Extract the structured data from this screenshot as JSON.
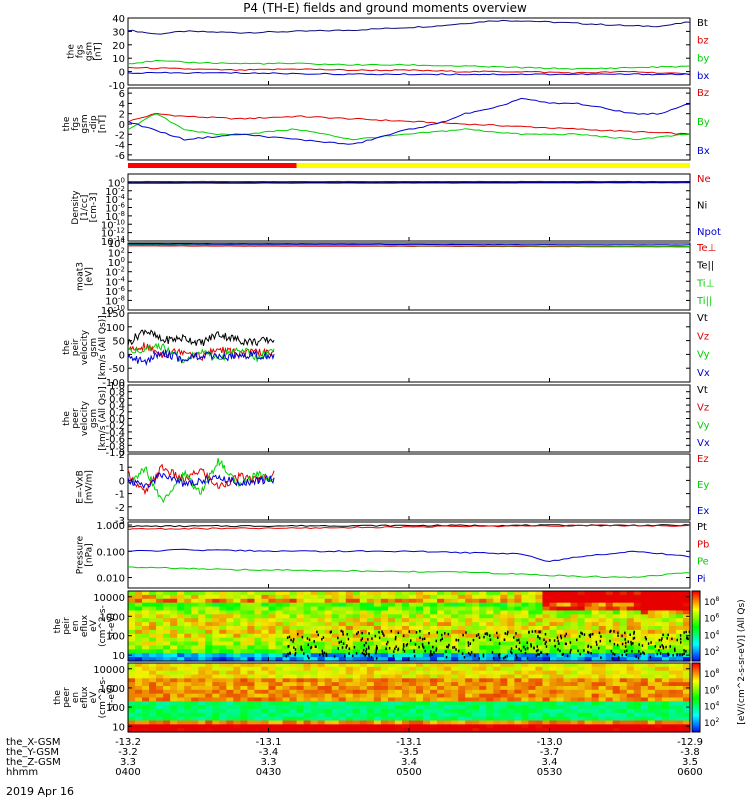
{
  "title": "P4 (TH-E) fields and ground moments overview",
  "date_label": "2019 Apr 16",
  "colors": {
    "black": "#000000",
    "red": "#e00000",
    "green": "#00d000",
    "blue": "#0000d0",
    "yellow": "#ffff00",
    "bar_red": "#ff0000"
  },
  "chart_data": [
    {
      "type": "line",
      "ylabel": [
        "the",
        "fgs",
        "gsm",
        "[nT]"
      ],
      "ylim": [
        -10,
        40
      ],
      "yticks": [
        "40",
        "30",
        "20",
        "10",
        "0",
        "-10"
      ],
      "ytick_vals": [
        40,
        30,
        20,
        10,
        0,
        -10
      ],
      "legend": [
        {
          "name": "Bt",
          "color": "#000000"
        },
        {
          "name": "bz",
          "color": "#e00000"
        },
        {
          "name": "by",
          "color": "#00d000"
        },
        {
          "name": "bx",
          "color": "#0000d0"
        }
      ],
      "series": [
        {
          "name": "Bt",
          "color": "#0a0a7a",
          "x": [
            0,
            0.05,
            0.1,
            0.2,
            0.3,
            0.4,
            0.5,
            0.55,
            0.6,
            0.65,
            0.7,
            0.75,
            0.8,
            0.85,
            0.9,
            0.95,
            1
          ],
          "y": [
            31,
            28,
            30,
            29,
            30,
            31,
            33,
            34,
            36,
            38,
            38,
            37,
            36,
            35,
            34,
            34,
            37
          ]
        },
        {
          "name": "bz",
          "color": "#e00000",
          "x": [
            0,
            0.1,
            0.2,
            0.3,
            0.4,
            0.5,
            0.6,
            0.7,
            0.8,
            0.9,
            1
          ],
          "y": [
            3,
            2,
            1,
            2,
            1,
            1,
            0,
            0,
            -1,
            0,
            -2
          ]
        },
        {
          "name": "by",
          "color": "#00d000",
          "x": [
            0,
            0.05,
            0.1,
            0.2,
            0.3,
            0.4,
            0.5,
            0.6,
            0.7,
            0.8,
            0.9,
            1
          ],
          "y": [
            6,
            8,
            7,
            6,
            6,
            5,
            5,
            4,
            3,
            2,
            3,
            4
          ]
        },
        {
          "name": "bx",
          "color": "#0000d0",
          "x": [
            0,
            0.2,
            0.4,
            0.6,
            0.8,
            1
          ],
          "y": [
            -1,
            -1,
            -2,
            -2,
            -2,
            -2
          ]
        }
      ]
    },
    {
      "type": "line",
      "ylabel": [
        "the",
        "fgs",
        "gsm",
        "-dip",
        "[nT]"
      ],
      "ylim": [
        -7,
        7
      ],
      "yticks": [
        "6",
        "4",
        "2",
        "0",
        "-2",
        "-4",
        "-6"
      ],
      "ytick_vals": [
        6,
        4,
        2,
        0,
        -2,
        -4,
        -6
      ],
      "legend": [
        {
          "name": "Bz",
          "color": "#e00000"
        },
        {
          "name": "By",
          "color": "#00d000"
        },
        {
          "name": "Bx",
          "color": "#0000d0"
        }
      ],
      "series": [
        {
          "name": "Bz",
          "color": "#e00000",
          "x": [
            0,
            0.05,
            0.1,
            0.2,
            0.3,
            0.4,
            0.5,
            0.6,
            0.7,
            0.8,
            0.9,
            1
          ],
          "y": [
            0.5,
            2,
            1.5,
            1,
            1.5,
            1,
            0.5,
            0,
            -0.5,
            -1,
            -1.5,
            -2
          ]
        },
        {
          "name": "By",
          "color": "#00d000",
          "x": [
            0,
            0.05,
            0.1,
            0.15,
            0.2,
            0.3,
            0.4,
            0.5,
            0.6,
            0.7,
            0.8,
            0.9,
            1
          ],
          "y": [
            -1,
            2,
            -1,
            -2,
            -2,
            -1,
            -3,
            -2,
            -1,
            -2,
            -2,
            -3,
            -2
          ]
        },
        {
          "name": "Bx",
          "color": "#0000d0",
          "x": [
            0,
            0.1,
            0.2,
            0.3,
            0.4,
            0.5,
            0.55,
            0.6,
            0.65,
            0.7,
            0.75,
            0.8,
            0.85,
            0.9,
            0.95,
            1
          ],
          "y": [
            0.5,
            -3,
            -2,
            -3,
            -4,
            -1,
            0,
            2,
            3,
            5,
            4,
            4,
            3,
            2,
            2,
            4
          ]
        }
      ]
    },
    {
      "type": "line",
      "ylabel": [
        "Density",
        "[1/cc]",
        "[cm-3]"
      ],
      "yscale": "log",
      "ylim": [
        1e-14,
        100.0
      ],
      "yticks": [
        "10^0",
        "10^-2",
        "10^-4",
        "10^-6",
        "10^-8",
        "10^-10",
        "10^-12",
        "10^-14"
      ],
      "ytick_vals": [
        0,
        -2,
        -4,
        -6,
        -8,
        -10,
        -12,
        -14
      ],
      "legend": [
        {
          "name": "Ne",
          "color": "#e00000"
        },
        {
          "name": "Ni",
          "color": "#000000"
        },
        {
          "name": "Npot",
          "color": "#0000d0"
        }
      ],
      "series": [
        {
          "name": "Ne",
          "color": "#e00000",
          "x": [
            0,
            1
          ],
          "y": [
            0.2,
            0.2
          ]
        },
        {
          "name": "Ni",
          "color": "#000000",
          "x": [
            0,
            1
          ],
          "y": [
            0.0,
            0.1
          ]
        },
        {
          "name": "Npot",
          "color": "#0000d0",
          "x": [
            0,
            1
          ],
          "y": [
            -0.2,
            -0.1
          ]
        }
      ]
    },
    {
      "type": "line",
      "ylabel": [
        "moat3",
        "[eV]"
      ],
      "yscale": "log",
      "ylim": [
        1e-10,
        10000.0
      ],
      "yticks": [
        "10^4",
        "10^2",
        "10^0",
        "10^-2",
        "10^-4",
        "10^-6",
        "10^-8",
        "10^-10"
      ],
      "ytick_vals": [
        4,
        2,
        0,
        -2,
        -4,
        -6,
        -8,
        -10
      ],
      "legend": [
        {
          "name": "Te⊥",
          "color": "#e00000"
        },
        {
          "name": "Te||",
          "color": "#000000"
        },
        {
          "name": "Ti⊥",
          "color": "#00d000"
        },
        {
          "name": "Ti||",
          "color": "#00d000"
        }
      ],
      "series": [
        {
          "name": "Te⊥",
          "color": "#e00000",
          "x": [
            0,
            1
          ],
          "y": [
            3.4,
            3.2
          ]
        },
        {
          "name": "Ti⊥",
          "color": "#00d000",
          "x": [
            0,
            1
          ],
          "y": [
            3.6,
            3.3
          ]
        },
        {
          "name": "Te||",
          "color": "#0000d0",
          "x": [
            0,
            1
          ],
          "y": [
            3.8,
            3.6
          ]
        }
      ]
    },
    {
      "type": "line",
      "ylabel": [
        "the",
        "peir",
        "velocity",
        "gsm",
        "[km/s (All Qs)]"
      ],
      "ylim": [
        -100,
        150
      ],
      "yticks": [
        "150",
        "100",
        "50",
        "0",
        "-50",
        "-100"
      ],
      "ytick_vals": [
        150,
        100,
        50,
        0,
        -50,
        -100
      ],
      "legend": [
        {
          "name": "Vt",
          "color": "#000000"
        },
        {
          "name": "Vz",
          "color": "#e00000"
        },
        {
          "name": "Vy",
          "color": "#00d000"
        },
        {
          "name": "Vx",
          "color": "#0000d0"
        }
      ],
      "series": [
        {
          "name": "Vt",
          "color": "#000000",
          "x": [
            0,
            0.03,
            0.06,
            0.1,
            0.13,
            0.16,
            0.2,
            0.23,
            0.26
          ],
          "y": [
            40,
            90,
            50,
            60,
            40,
            75,
            50,
            45,
            55
          ]
        },
        {
          "name": "Vz",
          "color": "#e00000",
          "x": [
            0,
            0.03,
            0.06,
            0.1,
            0.13,
            0.16,
            0.2,
            0.23,
            0.26
          ],
          "y": [
            10,
            30,
            0,
            15,
            -10,
            20,
            0,
            10,
            0
          ]
        },
        {
          "name": "Vy",
          "color": "#00d000",
          "x": [
            0,
            0.03,
            0.06,
            0.1,
            0.13,
            0.16,
            0.2,
            0.23,
            0.26
          ],
          "y": [
            20,
            10,
            30,
            -20,
            10,
            -15,
            20,
            -10,
            10
          ]
        },
        {
          "name": "Vx",
          "color": "#0000d0",
          "x": [
            0,
            0.03,
            0.06,
            0.1,
            0.13,
            0.16,
            0.2,
            0.23,
            0.26
          ],
          "y": [
            -10,
            -30,
            10,
            -20,
            0,
            -15,
            -5,
            0,
            -10
          ]
        }
      ]
    },
    {
      "type": "line",
      "ylabel": [
        "the",
        "peer",
        "velocity",
        "gsm",
        "[km/s (All Qs)]"
      ],
      "ylim": [
        -1,
        1
      ],
      "yticks": [
        "1.0",
        "0.8",
        "0.6",
        "0.4",
        "0.2",
        "0.0",
        "-0.2",
        "-0.4",
        "-0.6",
        "-0.8",
        "-1.0"
      ],
      "ytick_vals": [
        1,
        0.8,
        0.6,
        0.4,
        0.2,
        0,
        -0.2,
        -0.4,
        -0.6,
        -0.8,
        -1
      ],
      "legend": [
        {
          "name": "Vt",
          "color": "#000000"
        },
        {
          "name": "Vz",
          "color": "#e00000"
        },
        {
          "name": "Vy",
          "color": "#00d000"
        },
        {
          "name": "Vx",
          "color": "#0000d0"
        }
      ],
      "series": []
    },
    {
      "type": "line",
      "ylabel": [
        "E=-VxB",
        "[mV/m]"
      ],
      "ylim": [
        -3,
        2
      ],
      "yticks": [
        "2",
        "1",
        "0",
        "-1",
        "-2",
        "-3"
      ],
      "ytick_vals": [
        2,
        1,
        0,
        -1,
        -2,
        -3
      ],
      "legend": [
        {
          "name": "Ez",
          "color": "#e00000"
        },
        {
          "name": "Ey",
          "color": "#00d000"
        },
        {
          "name": "Ex",
          "color": "#0000d0"
        }
      ],
      "series": [
        {
          "name": "Ez",
          "color": "#e00000",
          "x": [
            0,
            0.03,
            0.06,
            0.1,
            0.13,
            0.16,
            0.2,
            0.23,
            0.26
          ],
          "y": [
            0.5,
            -1,
            1,
            0,
            0.8,
            -0.5,
            0.3,
            0,
            0.5
          ]
        },
        {
          "name": "Ey",
          "color": "#00d000",
          "x": [
            0,
            0.03,
            0.06,
            0.1,
            0.13,
            0.16,
            0.2,
            0.23,
            0.26
          ],
          "y": [
            -0.5,
            1,
            -1.5,
            0.5,
            -1,
            1.5,
            -0.5,
            0.5,
            0
          ]
        },
        {
          "name": "Ex",
          "color": "#0000d0",
          "x": [
            0,
            0.03,
            0.06,
            0.1,
            0.13,
            0.16,
            0.2,
            0.23,
            0.26
          ],
          "y": [
            0,
            -0.5,
            0.5,
            -0.3,
            0,
            0.2,
            -0.2,
            0,
            0.1
          ]
        }
      ]
    },
    {
      "type": "line",
      "ylabel": [
        "Pressure",
        "[nPa]"
      ],
      "yscale": "log",
      "ylim": [
        0.004,
        1.3
      ],
      "yticks": [
        "1.000",
        "0.100",
        "0.010"
      ],
      "ytick_vals": [
        0,
        -1,
        -2
      ],
      "legend": [
        {
          "name": "Pt",
          "color": "#000000"
        },
        {
          "name": "Pb",
          "color": "#e00000"
        },
        {
          "name": "Pe",
          "color": "#00d000"
        },
        {
          "name": "Pi",
          "color": "#0000d0"
        }
      ],
      "series": [
        {
          "name": "Pt",
          "color": "#000000",
          "x": [
            0,
            0.5,
            1
          ],
          "y": [
            -0.05,
            -0.02,
            -0.01
          ]
        },
        {
          "name": "Pb",
          "color": "#e00000",
          "x": [
            0,
            0.3,
            0.6,
            0.8,
            1
          ],
          "y": [
            -0.15,
            -0.12,
            -0.05,
            -0.02,
            -0.03
          ]
        },
        {
          "name": "Pi",
          "color": "#0000d0",
          "x": [
            0,
            0.1,
            0.3,
            0.5,
            0.7,
            0.75,
            0.8,
            0.9,
            1
          ],
          "y": [
            -1.0,
            -0.95,
            -1.0,
            -1.0,
            -1.1,
            -1.4,
            -1.2,
            -1.0,
            -1.2
          ]
        },
        {
          "name": "Pe",
          "color": "#00d000",
          "x": [
            0,
            0.2,
            0.4,
            0.6,
            0.8,
            0.9,
            1
          ],
          "y": [
            -1.6,
            -1.7,
            -1.75,
            -1.8,
            -1.95,
            -2.0,
            -1.8
          ]
        }
      ]
    },
    {
      "type": "heatmap",
      "ylabel": [
        "the",
        "peir",
        "en",
        "eflux",
        "eV",
        "(cm^2-s-",
        "sr-eV)"
      ],
      "yscale": "log",
      "yticks": [
        "10000",
        "1000",
        "100",
        "10"
      ],
      "ytick_vals": [
        4,
        3,
        2,
        1
      ]
    },
    {
      "type": "heatmap",
      "ylabel": [
        "the",
        "peer",
        "en",
        "eflux",
        "eV",
        "(cm^2-s-",
        "sr-eV)"
      ],
      "yscale": "log",
      "yticks": [
        "10000",
        "1000",
        "100",
        "10"
      ],
      "ytick_vals": [
        4,
        3,
        2,
        1
      ]
    }
  ],
  "colorbar": {
    "label": "[eV/(cm^2-s-sr-eV)] (All Qs)",
    "ticks_top": [
      "10^8",
      "10^6",
      "10^4",
      "10^2"
    ],
    "ticks_bottom": [
      "10^8",
      "10^6",
      "10^4",
      "10^2"
    ]
  },
  "x_axis": {
    "tick_labels": [
      {
        "rows": [
          "-13.2",
          "-3.2",
          "3.3",
          "0400"
        ]
      },
      {
        "rows": [
          "-13.1",
          "-3.4",
          "3.3",
          "0430"
        ]
      },
      {
        "rows": [
          "-13.1",
          "-3.5",
          "3.4",
          "0500"
        ]
      },
      {
        "rows": [
          "-13.0",
          "-3.7",
          "3.4",
          "0530"
        ]
      },
      {
        "rows": [
          "-12.9",
          "-3.8",
          "3.5",
          "0600"
        ]
      }
    ],
    "row_labels": [
      "the_X-GSM",
      "the_Y-GSM",
      "the_Z-GSM",
      "hhmm"
    ]
  },
  "status_bar_split": 0.3
}
